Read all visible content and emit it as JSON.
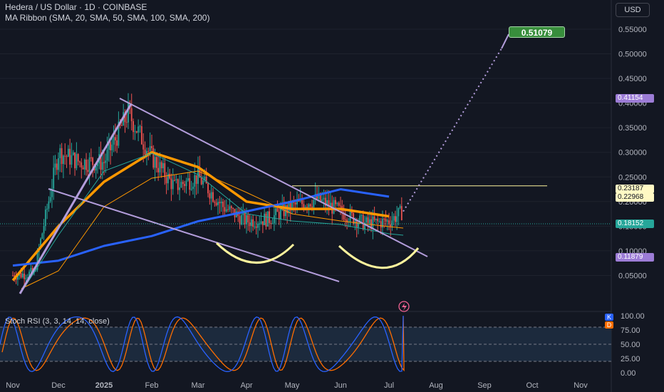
{
  "header": {
    "title": "Hedera / US Dollar · 1D · COINBASE",
    "indicator": "MA Ribbon (SMA, 20, SMA, 50, SMA, 100, SMA, 200)",
    "currency": "USD",
    "stoch_label": "Stoch RSI (3, 3, 14, 14, close)"
  },
  "price_tags": {
    "target_callout": "0.51079",
    "tag_high": "0.41154",
    "tag_level1": "0.23187",
    "tag_level2": "0.22968",
    "tag_current": "0.18152",
    "tag_low": "0.11879"
  },
  "stoch_tags": {
    "k": "K",
    "d": "D"
  },
  "colors": {
    "background": "#131722",
    "candle_up": "#26a69a",
    "candle_down": "#ef5350",
    "ma_orange": "#ff9800",
    "ma_blue": "#2962ff",
    "trendline": "#b39ddb",
    "cup_arc": "#fff59d",
    "stoch_k": "#2962ff",
    "stoch_d": "#ff6d00",
    "target_tag": "#388e3c"
  },
  "chart_data": {
    "type": "candlestick",
    "title": "Hedera / US Dollar · 1D · COINBASE",
    "x_ticks": [
      "Nov",
      "Dec",
      "2025",
      "Feb",
      "Mar",
      "Apr",
      "May",
      "Jun",
      "Jul",
      "Aug",
      "Sep",
      "Oct",
      "Nov"
    ],
    "y_ticks": [
      "0.55000",
      "0.50000",
      "0.45000",
      "0.40000",
      "0.35000",
      "0.30000",
      "0.25000",
      "0.20000",
      "0.15000",
      "0.10000",
      "0.05000"
    ],
    "y_range": [
      0.0,
      0.57
    ],
    "price_points_by_month": [
      {
        "t": "Nov",
        "close": 0.05
      },
      {
        "t": "Nov-mid",
        "close": 0.055
      },
      {
        "t": "Dec",
        "close": 0.3
      },
      {
        "t": "Dec-mid",
        "close": 0.28
      },
      {
        "t": "2025",
        "close": 0.28
      },
      {
        "t": "Jan-mid",
        "close": 0.38
      },
      {
        "t": "Feb",
        "close": 0.29
      },
      {
        "t": "Feb-mid",
        "close": 0.23
      },
      {
        "t": "Mar",
        "close": 0.25
      },
      {
        "t": "Mar-mid",
        "close": 0.19
      },
      {
        "t": "Apr",
        "close": 0.16
      },
      {
        "t": "Apr-mid",
        "close": 0.165
      },
      {
        "t": "May",
        "close": 0.19
      },
      {
        "t": "May-mid",
        "close": 0.205
      },
      {
        "t": "Jun",
        "close": 0.18
      },
      {
        "t": "Jun-mid",
        "close": 0.155
      },
      {
        "t": "Jul",
        "close": 0.16
      },
      {
        "t": "Jul-mid",
        "close": 0.18
      }
    ],
    "ma_series": [
      {
        "color": "#ff9800",
        "points": [
          [
            "Nov",
            0.04
          ],
          [
            "Dec",
            0.15
          ],
          [
            "2025",
            0.24
          ],
          [
            "Feb",
            0.3
          ],
          [
            "Mar",
            0.27
          ],
          [
            "Apr",
            0.2
          ],
          [
            "May",
            0.185
          ],
          [
            "Jun",
            0.185
          ],
          [
            "Jul",
            0.17
          ]
        ]
      },
      {
        "color": "#2962ff",
        "points": [
          [
            "Nov",
            0.07
          ],
          [
            "Dec",
            0.08
          ],
          [
            "2025",
            0.11
          ],
          [
            "Feb",
            0.13
          ],
          [
            "Mar",
            0.16
          ],
          [
            "Apr",
            0.18
          ],
          [
            "May",
            0.2
          ],
          [
            "Jun",
            0.225
          ],
          [
            "Jul",
            0.21
          ]
        ]
      }
    ],
    "horizontal_level": 0.232,
    "projection": {
      "from": [
        "Jul-mid",
        0.18
      ],
      "to": [
        "Sep",
        0.51079
      ]
    },
    "stoch": {
      "y_ticks": [
        "100.00",
        "75.00",
        "50.00",
        "25.00",
        "0.00"
      ],
      "bands": [
        80,
        20
      ]
    }
  }
}
